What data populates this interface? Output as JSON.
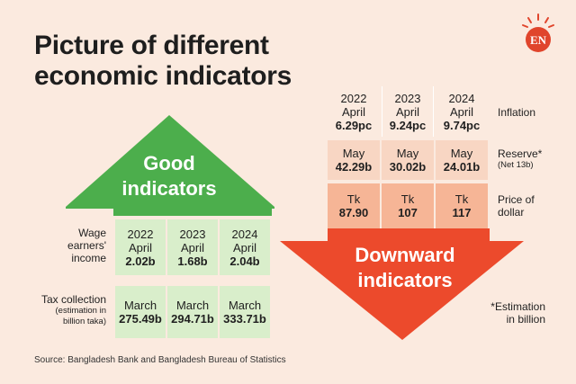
{
  "title": "Picture of different economic indicators",
  "logo": {
    "text": "EN",
    "color": "#e0452c"
  },
  "colors": {
    "background": "#fbeadf",
    "good": "#4cae4c",
    "down": "#ec4a2c",
    "cell_green": "#d9eecb",
    "cell_peach": "#f8d6c3",
    "cell_orange": "#f6b596"
  },
  "good": {
    "heading_line1": "Good",
    "heading_line2": "indicators",
    "wage": {
      "label_line1": "Wage",
      "label_line2": "earners'",
      "label_line3": "income",
      "cols": [
        {
          "year": "2022",
          "month": "April",
          "value": "2.02b"
        },
        {
          "year": "2023",
          "month": "April",
          "value": "1.68b"
        },
        {
          "year": "2024",
          "month": "April",
          "value": "2.04b"
        }
      ]
    },
    "tax": {
      "label": "Tax collection",
      "sub_line1": "(estimation in",
      "sub_line2": "billion taka)",
      "cols": [
        {
          "month": "March",
          "value": "275.49b"
        },
        {
          "month": "March",
          "value": "294.71b"
        },
        {
          "month": "March",
          "value": "333.71b"
        }
      ]
    }
  },
  "down": {
    "heading_line1": "Downward",
    "heading_line2": "indicators",
    "inflation": {
      "label": "Inflation",
      "cols": [
        {
          "year": "2022",
          "month": "April",
          "value": "6.29pc"
        },
        {
          "year": "2023",
          "month": "April",
          "value": "9.24pc"
        },
        {
          "year": "2024",
          "month": "April",
          "value": "9.74pc"
        }
      ]
    },
    "reserve": {
      "label": "Reserve*",
      "sub": "(Net 13b)",
      "cols": [
        {
          "month": "May",
          "value": "42.29b"
        },
        {
          "month": "May",
          "value": "30.02b"
        },
        {
          "month": "May",
          "value": "24.01b"
        }
      ]
    },
    "dollar": {
      "label_line1": "Price of",
      "label_line2": "dollar",
      "cols": [
        {
          "unit": "Tk",
          "value": "87.90"
        },
        {
          "unit": "Tk",
          "value": "107"
        },
        {
          "unit": "Tk",
          "value": "117"
        }
      ]
    }
  },
  "footnote_line1": "*Estimation",
  "footnote_line2": "in billion",
  "source": "Source: Bangladesh Bank and Bangladesh Bureau of Statistics"
}
